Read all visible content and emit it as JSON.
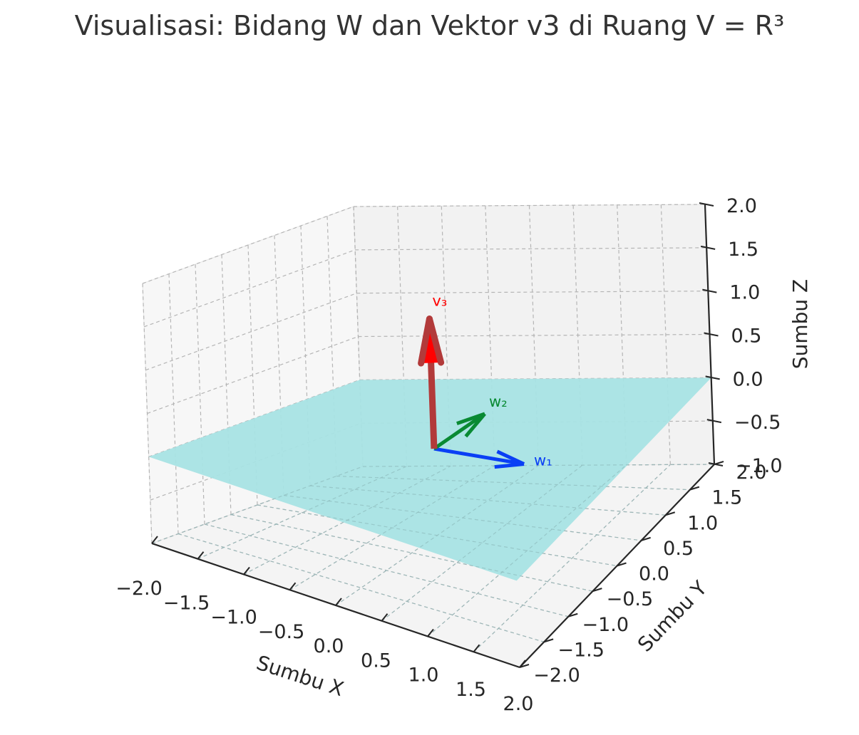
{
  "chart_data": {
    "type": "3d-vector",
    "title": "Visualisasi: Bidang W dan Vektor v3 di Ruang V = R³",
    "xlabel": "Sumbu X",
    "ylabel": "Sumbu Y",
    "zlabel": "Sumbu Z",
    "xlim": [
      -2,
      2
    ],
    "ylim": [
      -2,
      2
    ],
    "zlim": [
      -1,
      2
    ],
    "x_ticks": [
      "−2.0",
      "−1.5",
      "−1.0",
      "−0.5",
      "0.0",
      "0.5",
      "1.0",
      "1.5",
      "2.0"
    ],
    "y_ticks": [
      "−2.0",
      "−1.5",
      "−1.0",
      "−0.5",
      "0.0",
      "0.5",
      "1.0",
      "1.5",
      "2.0"
    ],
    "z_ticks": [
      "−1.0",
      "−0.5",
      "0.0",
      "0.5",
      "1.0",
      "1.5",
      "2.0"
    ],
    "grid": true,
    "plane": {
      "name": "W",
      "z": 0,
      "x_range": [
        -2,
        2
      ],
      "y_range": [
        -2,
        2
      ],
      "color": "#a8e3e4"
    },
    "vectors": [
      {
        "label": "w₁",
        "vector": [
          1,
          0,
          0
        ],
        "color": "#0a3ff5"
      },
      {
        "label": "w₂",
        "vector": [
          0,
          1,
          0
        ],
        "color": "#098a33"
      },
      {
        "label": "v₃",
        "vector": [
          0,
          0,
          1.5
        ],
        "color": "#b23a3a",
        "head_color": "#ff0000",
        "label_color": "#ff0000"
      }
    ]
  }
}
